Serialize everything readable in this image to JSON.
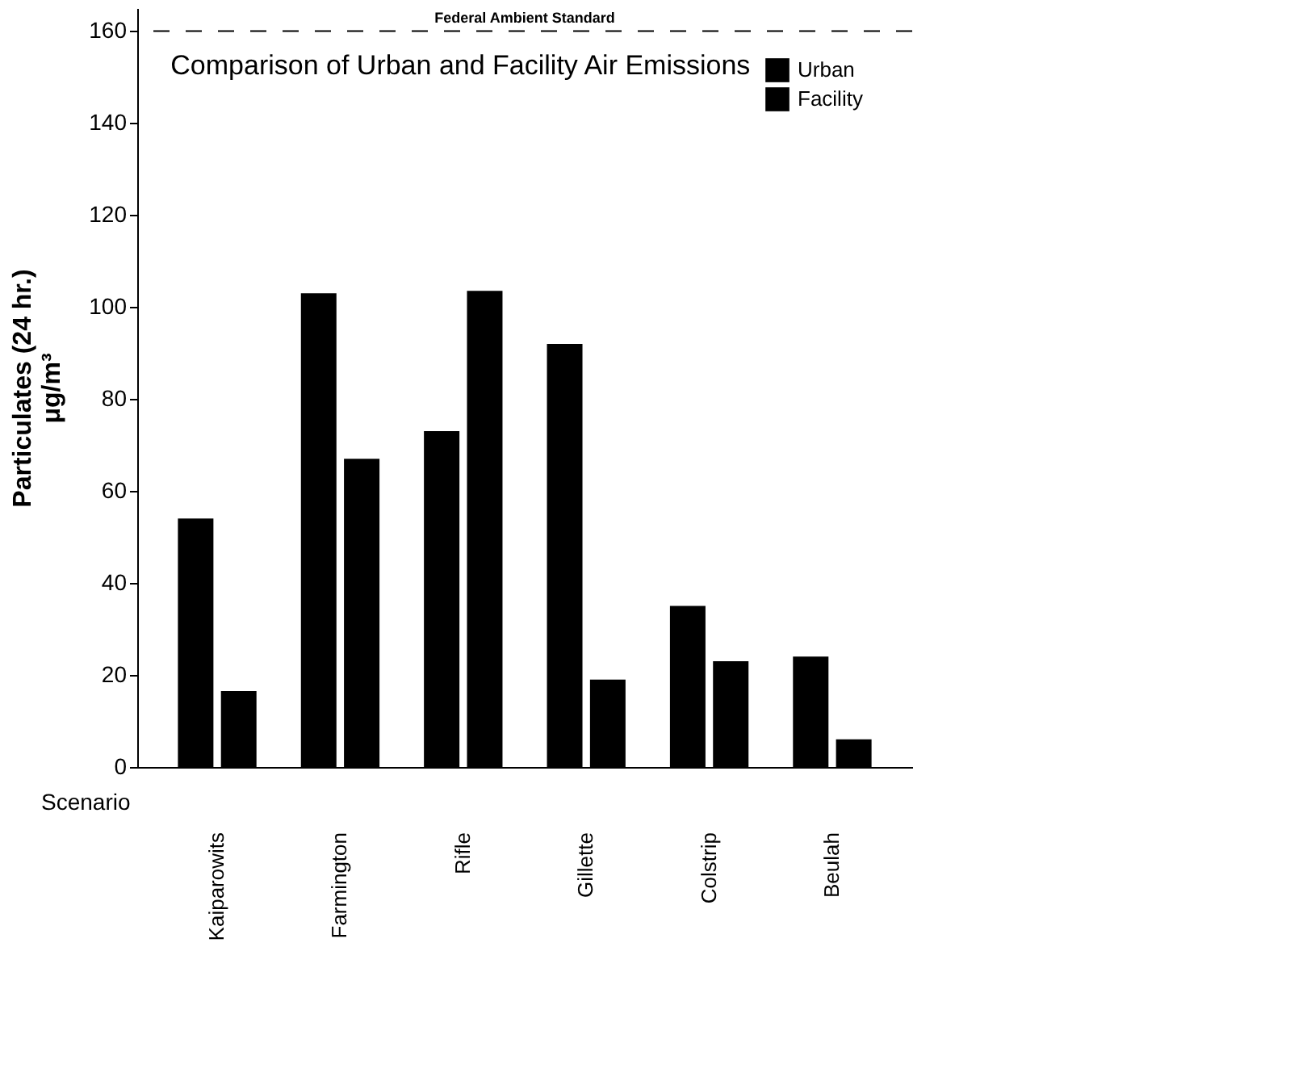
{
  "chart_data": {
    "type": "bar",
    "title": "Comparison of Urban and Facility Air Emissions",
    "xlabel": "Scenario",
    "ylabel": "Particulates (24 hr.)\nμg/m³",
    "categories": [
      "Kaiparowits",
      "Farmington",
      "Rifle",
      "Gillette",
      "Colstrip",
      "Beulah"
    ],
    "series": [
      {
        "name": "Urban",
        "color": "#000000",
        "values": [
          54,
          103,
          73,
          92,
          35,
          24
        ]
      },
      {
        "name": "Facility",
        "color": "#000000",
        "values": [
          16.5,
          67,
          103.5,
          19,
          23,
          6
        ]
      }
    ],
    "ylim": [
      0,
      165
    ],
    "yticks": [
      0,
      20,
      40,
      60,
      80,
      100,
      120,
      140,
      160
    ],
    "ref_lines": [
      {
        "axis": "y",
        "value": 160,
        "label": "Federal Ambient Standard",
        "color": "#000000",
        "line_style": "dashed"
      }
    ],
    "grid": false,
    "legend": "top right"
  }
}
